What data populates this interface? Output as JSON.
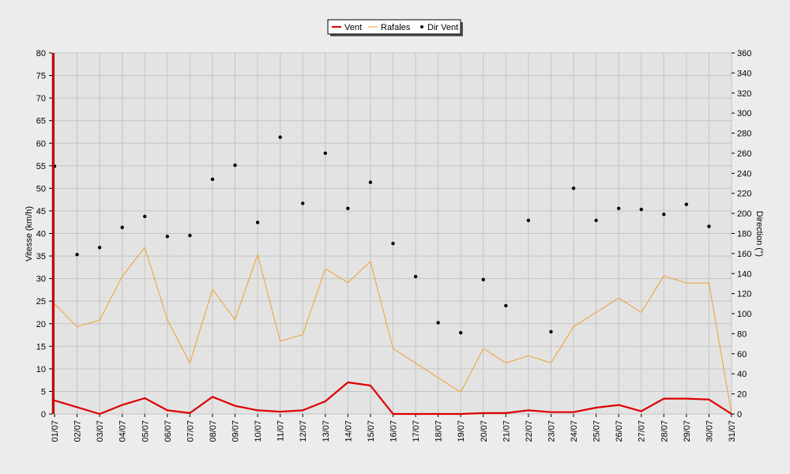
{
  "chart_data": {
    "type": "line",
    "title": "",
    "ylabel": "Vitesse (km/h)",
    "y2label": "Direction (°)",
    "xlabel": "",
    "ylim": [
      0,
      80
    ],
    "y2lim": [
      0,
      360
    ],
    "ytick_step": 5,
    "y2tick_step": 20,
    "grid": true,
    "legend_position": "top-center",
    "categories": [
      "01/07",
      "02/07",
      "03/07",
      "04/07",
      "05/07",
      "06/07",
      "07/07",
      "08/07",
      "09/07",
      "10/07",
      "11/07",
      "12/07",
      "13/07",
      "14/07",
      "15/07",
      "16/07",
      "17/07",
      "18/07",
      "19/07",
      "20/07",
      "21/07",
      "22/07",
      "23/07",
      "24/07",
      "25/07",
      "26/07",
      "27/07",
      "28/07",
      "29/07",
      "30/07",
      "31/07"
    ],
    "series": [
      {
        "name": "Vent",
        "type": "line",
        "axis": "left",
        "color": "#dd0000",
        "values": [
          3,
          1.5,
          0,
          2,
          3.5,
          0.8,
          0.2,
          3.8,
          1.8,
          0.8,
          0.5,
          0.8,
          2.8,
          7,
          6.3,
          0,
          0,
          0,
          0,
          0.2,
          0.2,
          0.8,
          0.4,
          0.4,
          1.4,
          2,
          0.6,
          3.4,
          3.4,
          3.2,
          0
        ]
      },
      {
        "name": "Rafales",
        "type": "line",
        "axis": "left",
        "color": "#f0a030",
        "values": [
          24.4,
          19.3,
          20.8,
          30.5,
          36.9,
          20.9,
          11.3,
          27.6,
          20.9,
          35.3,
          16.1,
          17.6,
          32.2,
          29.1,
          33.8,
          14.5,
          null,
          null,
          4.8,
          14.5,
          11.3,
          12.9,
          11.3,
          19.3,
          null,
          25.7,
          22.5,
          30.6,
          29,
          29,
          0
        ]
      },
      {
        "name": "Dir Vent",
        "type": "scatter",
        "axis": "right",
        "color": "#000000",
        "values": [
          247,
          159,
          166,
          186,
          197,
          177,
          178,
          234,
          248,
          191,
          276,
          210,
          260,
          205,
          231,
          170,
          137,
          91,
          81,
          134,
          108,
          193,
          82,
          225,
          193,
          205,
          204,
          199,
          209,
          187,
          null
        ]
      }
    ]
  }
}
